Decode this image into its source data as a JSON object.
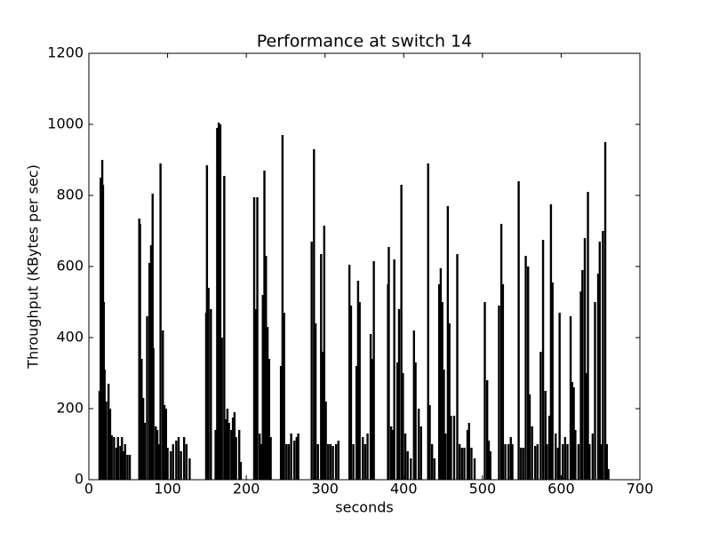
{
  "chart_data": {
    "type": "bar",
    "title": "Performance at switch 14",
    "xlabel": "seconds",
    "ylabel": "Throughput (KBytes per sec)",
    "color": "#000000",
    "x": [
      13.5,
      15,
      17,
      18,
      19,
      20,
      22,
      25,
      27,
      29,
      32,
      35,
      37,
      40,
      42,
      44,
      46,
      49,
      52,
      64,
      65,
      67,
      69,
      71,
      74,
      77,
      79,
      81,
      82,
      85,
      87,
      89,
      91,
      94,
      96,
      98,
      100,
      104,
      107,
      111,
      114,
      117,
      121,
      124,
      128,
      149,
      150,
      152,
      155,
      161,
      163,
      165,
      167,
      169,
      172,
      174,
      176,
      178,
      181,
      183,
      185,
      187,
      191,
      193,
      210,
      212,
      214,
      217,
      219,
      221,
      223,
      225,
      227,
      229,
      231,
      244,
      246,
      248,
      251,
      254,
      257,
      261,
      264,
      266,
      283,
      286,
      288,
      291,
      295,
      297,
      299,
      301,
      304,
      307,
      310,
      314,
      317,
      331,
      333,
      336,
      340,
      342,
      344,
      348,
      351,
      354,
      358,
      360,
      362,
      380,
      381,
      384,
      386,
      388,
      392,
      394,
      397,
      399,
      402,
      405,
      409,
      413,
      415,
      419,
      422,
      431,
      433,
      436,
      439,
      445,
      447,
      449,
      451,
      453,
      456,
      458,
      460,
      464,
      468,
      471,
      474,
      477,
      481,
      483,
      486,
      490,
      503,
      506,
      508,
      510,
      521,
      524,
      526,
      529,
      533,
      536,
      538,
      546,
      549,
      552,
      555,
      558,
      560,
      563,
      567,
      570,
      574,
      577,
      580,
      582,
      585,
      587,
      589,
      593,
      596,
      598,
      602,
      605,
      608,
      612,
      614,
      616,
      618,
      622,
      625,
      627,
      630,
      632,
      634,
      636,
      640,
      643,
      647,
      649,
      651,
      653,
      656,
      658,
      660
    ],
    "values": [
      250,
      850,
      900,
      830,
      500,
      310,
      220,
      270,
      200,
      125,
      120,
      90,
      120,
      95,
      120,
      80,
      100,
      70,
      70,
      735,
      720,
      340,
      230,
      160,
      460,
      610,
      660,
      805,
      370,
      150,
      140,
      100,
      890,
      420,
      210,
      200,
      90,
      80,
      100,
      110,
      120,
      80,
      120,
      100,
      60,
      470,
      885,
      540,
      480,
      140,
      990,
      1005,
      1000,
      400,
      855,
      170,
      200,
      160,
      140,
      175,
      190,
      120,
      140,
      50,
      795,
      480,
      795,
      130,
      100,
      520,
      870,
      630,
      430,
      340,
      120,
      320,
      970,
      470,
      100,
      100,
      130,
      110,
      120,
      130,
      670,
      930,
      440,
      100,
      635,
      360,
      715,
      220,
      100,
      100,
      95,
      100,
      110,
      605,
      490,
      100,
      320,
      560,
      500,
      120,
      100,
      130,
      410,
      340,
      615,
      550,
      655,
      150,
      140,
      620,
      330,
      480,
      830,
      300,
      130,
      80,
      60,
      420,
      330,
      200,
      150,
      890,
      210,
      100,
      60,
      550,
      595,
      500,
      310,
      130,
      770,
      440,
      180,
      180,
      635,
      100,
      90,
      90,
      140,
      160,
      90,
      60,
      500,
      280,
      110,
      80,
      490,
      720,
      550,
      100,
      100,
      120,
      100,
      840,
      90,
      90,
      630,
      600,
      240,
      150,
      95,
      100,
      360,
      675,
      250,
      100,
      180,
      775,
      555,
      130,
      90,
      470,
      100,
      120,
      100,
      460,
      275,
      260,
      140,
      100,
      530,
      590,
      680,
      300,
      810,
      100,
      130,
      500,
      580,
      670,
      100,
      700,
      950,
      100,
      30
    ],
    "xlim": [
      0,
      700
    ],
    "xticks": [
      0,
      100,
      200,
      300,
      400,
      500,
      600,
      700
    ],
    "ylim": [
      0,
      1200
    ],
    "yticks": [
      0,
      200,
      400,
      600,
      800,
      1000,
      1200
    ]
  }
}
